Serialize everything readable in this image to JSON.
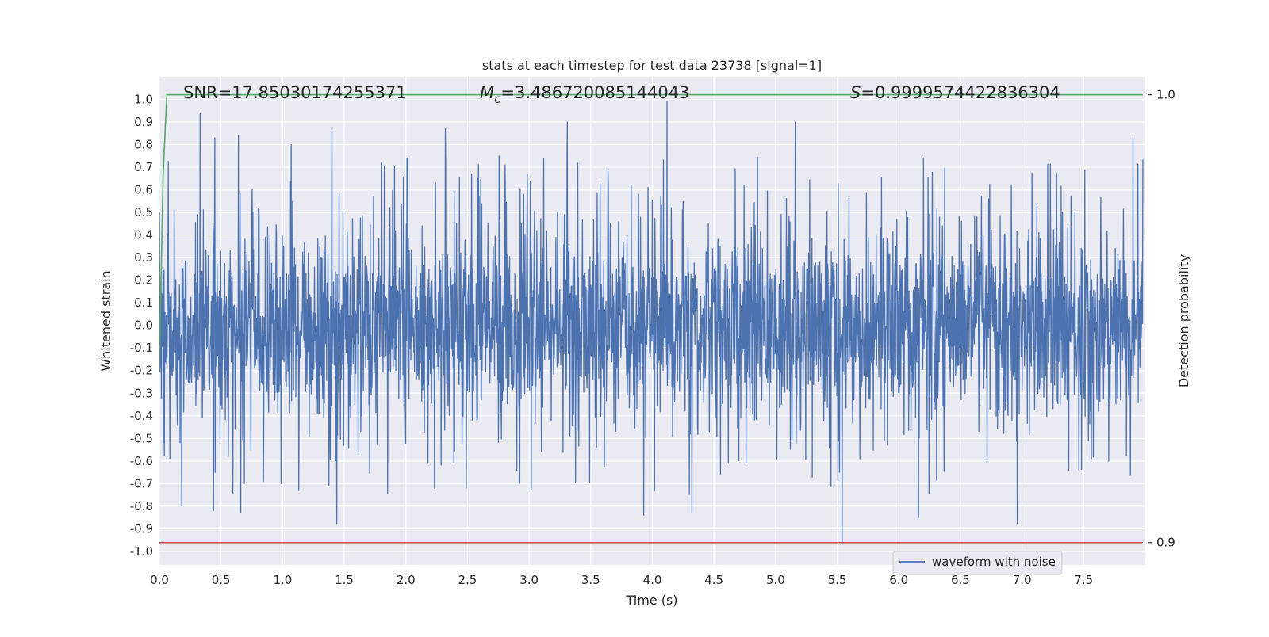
{
  "chart_data": {
    "type": "line",
    "title": "stats at each timestep for test data 23738 [signal=1]",
    "xlabel": "Time (s)",
    "ylabel": "Whitened strain",
    "y2label": "Detection probability",
    "xlim": [
      0.0,
      8.0
    ],
    "ylim": [
      -1.06,
      1.1
    ],
    "y2lim": [
      0.895,
      1.004
    ],
    "x_ticks": [
      "0.0",
      "0.5",
      "1.0",
      "1.5",
      "2.0",
      "2.5",
      "3.0",
      "3.5",
      "4.0",
      "4.5",
      "5.0",
      "5.5",
      "6.0",
      "6.5",
      "7.0",
      "7.5"
    ],
    "y_ticks": [
      "1.0",
      "0.9",
      "0.8",
      "0.7",
      "0.6",
      "0.5",
      "0.4",
      "0.3",
      "0.2",
      "0.1",
      "0.0",
      "-0.1",
      "-0.2",
      "-0.3",
      "-0.4",
      "-0.5",
      "-0.6",
      "-0.7",
      "-0.8",
      "-0.9",
      "-1.0"
    ],
    "y2_ticks": [
      "1.0",
      "0.9"
    ],
    "grid": true,
    "legend_position": "lower-right",
    "annotations": {
      "snr": "SNR=17.85030174255371",
      "mc_symbol": "M",
      "mc_sub": "c",
      "mc_value": "=3.486720085144043",
      "s_symbol": "S",
      "s_value": "=0.9999574422836304"
    },
    "series": [
      {
        "name": "waveform with noise",
        "color": "#4c72b0",
        "type": "noise",
        "x_range": [
          0.0,
          7.98
        ],
        "peaks": [
          {
            "x": 0.33,
            "y": 0.94
          },
          {
            "x": 0.45,
            "y": 0.83
          },
          {
            "x": 0.64,
            "y": 0.84
          },
          {
            "x": 1.07,
            "y": 0.8
          },
          {
            "x": 1.4,
            "y": 0.87
          },
          {
            "x": 2.32,
            "y": 0.87
          },
          {
            "x": 3.31,
            "y": 0.9
          },
          {
            "x": 4.12,
            "y": 0.99
          },
          {
            "x": 5.16,
            "y": 0.9
          },
          {
            "x": 7.9,
            "y": 0.83
          }
        ],
        "troughs": [
          {
            "x": 0.18,
            "y": -0.8
          },
          {
            "x": 0.44,
            "y": -0.82
          },
          {
            "x": 0.66,
            "y": -0.83
          },
          {
            "x": 1.44,
            "y": -0.88
          },
          {
            "x": 3.93,
            "y": -0.84
          },
          {
            "x": 4.32,
            "y": -0.83
          },
          {
            "x": 5.54,
            "y": -0.97
          },
          {
            "x": 6.16,
            "y": -0.85
          },
          {
            "x": 6.96,
            "y": -0.88
          }
        ]
      },
      {
        "name": "",
        "color": "#55a868",
        "axis": "right",
        "x": [
          0.0,
          0.03,
          0.06,
          7.98
        ],
        "y": [
          0.94,
          0.982,
          1.0,
          1.0
        ]
      },
      {
        "name": "",
        "color": "#c44e52",
        "axis": "right",
        "x": [
          0.0,
          7.98
        ],
        "y": [
          0.9,
          0.9
        ]
      }
    ]
  }
}
